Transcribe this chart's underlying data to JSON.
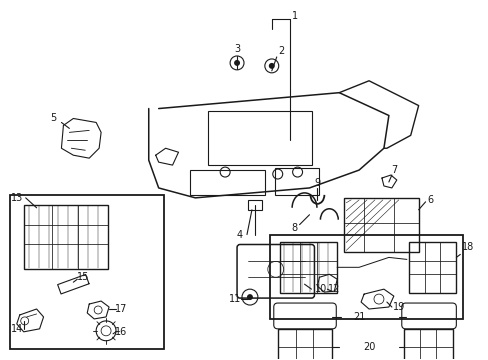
{
  "bg_color": "#ffffff",
  "line_color": "#1a1a1a",
  "fig_width": 4.89,
  "fig_height": 3.6,
  "dpi": 100,
  "label_fontsize": 7.0,
  "lw": 0.8
}
